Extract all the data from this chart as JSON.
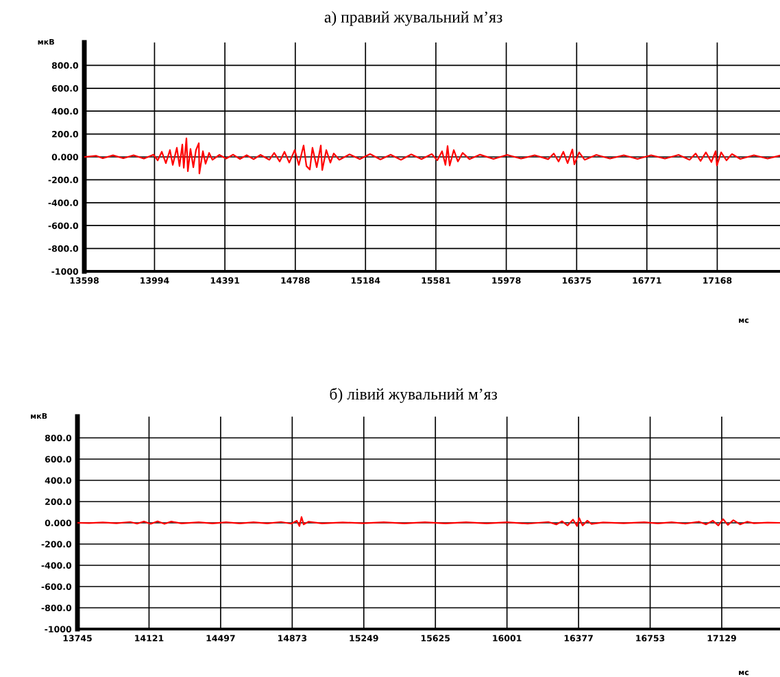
{
  "chart_data": [
    {
      "type": "line",
      "title": "а) правий жувальний м’яз",
      "xlabel": "мс",
      "ylabel": "мкВ",
      "grid": true,
      "marker": "none",
      "line_style": "solid",
      "xlim": [
        13598,
        17522
      ],
      "xticks": [
        13598,
        13994,
        14391,
        14788,
        15184,
        15581,
        15978,
        16375,
        16771,
        17168
      ],
      "ylim": [
        -1000,
        1000
      ],
      "yticks": [
        {
          "value": 800,
          "label": "800.0"
        },
        {
          "value": 600,
          "label": "600.0"
        },
        {
          "value": 400,
          "label": "400.0"
        },
        {
          "value": 200,
          "label": "200.0"
        },
        {
          "value": 0,
          "label": "0.000"
        },
        {
          "value": -200,
          "label": "-200.0"
        },
        {
          "value": -400,
          "label": "-400.0"
        },
        {
          "value": -600,
          "label": "-600.0"
        },
        {
          "value": -800,
          "label": "-800.0"
        },
        {
          "value": -1000,
          "label": "-1000"
        }
      ],
      "series": [
        {
          "color": "#ff0000",
          "x": [
            13598,
            13664,
            13702,
            13760,
            13818,
            13876,
            13934,
            13988,
            14012,
            14035,
            14058,
            14081,
            14097,
            14120,
            14135,
            14151,
            14159,
            14174,
            14182,
            14197,
            14213,
            14228,
            14244,
            14247,
            14267,
            14282,
            14302,
            14321,
            14360,
            14398,
            14437,
            14476,
            14514,
            14553,
            14592,
            14642,
            14669,
            14700,
            14727,
            14754,
            14785,
            14808,
            14835,
            14851,
            14870,
            14885,
            14909,
            14932,
            14940,
            14963,
            14986,
            15005,
            15036,
            15094,
            15152,
            15210,
            15268,
            15326,
            15384,
            15442,
            15500,
            15558,
            15589,
            15616,
            15635,
            15647,
            15659,
            15682,
            15705,
            15732,
            15771,
            15829,
            15906,
            15983,
            16061,
            16138,
            16215,
            16246,
            16273,
            16300,
            16324,
            16351,
            16362,
            16389,
            16420,
            16486,
            16563,
            16641,
            16718,
            16795,
            16873,
            16950,
            17012,
            17046,
            17074,
            17104,
            17135,
            17159,
            17166,
            17190,
            17220,
            17251,
            17298,
            17375,
            17452,
            17522
          ],
          "values": [
            0,
            10,
            -12,
            14,
            -12,
            15,
            -15,
            20,
            -30,
            45,
            -55,
            60,
            -70,
            80,
            -80,
            108,
            -95,
            162,
            -125,
            70,
            -90,
            60,
            120,
            -145,
            50,
            -60,
            35,
            -25,
            18,
            -15,
            20,
            -18,
            15,
            -20,
            18,
            -25,
            35,
            -40,
            45,
            -50,
            60,
            -70,
            100,
            -80,
            -110,
            80,
            -90,
            100,
            -115,
            60,
            -50,
            30,
            -25,
            22,
            -20,
            25,
            -22,
            20,
            -25,
            22,
            -20,
            25,
            -30,
            50,
            -70,
            95,
            -75,
            60,
            -40,
            35,
            -20,
            20,
            -18,
            18,
            -15,
            15,
            -20,
            30,
            -40,
            45,
            -55,
            65,
            -65,
            40,
            -25,
            18,
            -15,
            15,
            -18,
            15,
            -15,
            18,
            -25,
            30,
            -35,
            40,
            -45,
            50,
            -75,
            40,
            -30,
            25,
            -18,
            15,
            -15,
            12
          ]
        }
      ]
    },
    {
      "type": "line",
      "title": "б) лівий жувальний м’яз",
      "xlabel": "мс",
      "ylabel": "мкВ",
      "grid": true,
      "marker": "none",
      "line_style": "solid",
      "xlim": [
        13745,
        17435
      ],
      "xticks": [
        13745,
        14121,
        14497,
        14873,
        15249,
        15625,
        16001,
        16377,
        16753,
        17129
      ],
      "ylim": [
        -1000,
        1000
      ],
      "yticks": [
        {
          "value": 800,
          "label": "800.0"
        },
        {
          "value": 600,
          "label": "600.0"
        },
        {
          "value": 400,
          "label": "400.0"
        },
        {
          "value": 200,
          "label": "200.0"
        },
        {
          "value": 0,
          "label": "0.000"
        },
        {
          "value": -200,
          "label": "-200.0"
        },
        {
          "value": -400,
          "label": "-400.0"
        },
        {
          "value": -600,
          "label": "-600.0"
        },
        {
          "value": -800,
          "label": "-800.0"
        },
        {
          "value": -1000,
          "label": "-1000"
        }
      ],
      "series": [
        {
          "color": "#ff0000",
          "x": [
            13745,
            13806,
            13878,
            13950,
            14022,
            14058,
            14094,
            14130,
            14166,
            14202,
            14238,
            14292,
            14382,
            14454,
            14526,
            14598,
            14670,
            14742,
            14814,
            14868,
            14897,
            14911,
            14922,
            14933,
            14958,
            15030,
            15138,
            15246,
            15354,
            15462,
            15570,
            15678,
            15786,
            15894,
            16002,
            16110,
            16218,
            16261,
            16290,
            16319,
            16348,
            16369,
            16380,
            16398,
            16423,
            16445,
            16506,
            16614,
            16722,
            16794,
            16866,
            16938,
            17010,
            17046,
            17082,
            17111,
            17136,
            17161,
            17190,
            17226,
            17262,
            17298,
            17370,
            17435
          ],
          "values": [
            0,
            -3,
            4,
            -4,
            8,
            -8,
            12,
            -10,
            14,
            -10,
            12,
            -6,
            5,
            -5,
            6,
            -5,
            6,
            -6,
            8,
            -8,
            20,
            -30,
            55,
            -15,
            10,
            -5,
            4,
            -4,
            5,
            -5,
            6,
            -6,
            5,
            -6,
            6,
            -8,
            8,
            -15,
            15,
            -25,
            30,
            -30,
            45,
            -25,
            20,
            -10,
            4,
            -4,
            5,
            -5,
            6,
            -8,
            10,
            -15,
            20,
            -25,
            35,
            -20,
            25,
            -15,
            10,
            -4,
            3,
            0
          ]
        }
      ]
    }
  ]
}
